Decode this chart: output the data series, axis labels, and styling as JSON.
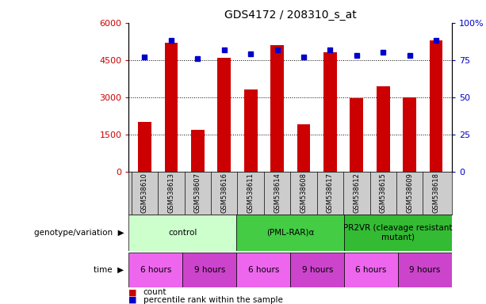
{
  "title": "GDS4172 / 208310_s_at",
  "samples": [
    "GSM538610",
    "GSM538613",
    "GSM538607",
    "GSM538616",
    "GSM538611",
    "GSM538614",
    "GSM538608",
    "GSM538617",
    "GSM538612",
    "GSM538615",
    "GSM538609",
    "GSM538618"
  ],
  "counts": [
    2000,
    5200,
    1700,
    4600,
    3300,
    5100,
    1900,
    4800,
    2950,
    3450,
    3000,
    5300
  ],
  "percentiles": [
    77,
    88,
    76,
    82,
    79,
    82,
    77,
    82,
    78,
    80,
    78,
    88
  ],
  "ylim_left": [
    0,
    6000
  ],
  "ylim_right": [
    0,
    100
  ],
  "yticks_left": [
    0,
    1500,
    3000,
    4500,
    6000
  ],
  "yticks_right": [
    0,
    25,
    50,
    75,
    100
  ],
  "ytick_labels_left": [
    "0",
    "1500",
    "3000",
    "4500",
    "6000"
  ],
  "ytick_labels_right": [
    "0",
    "25",
    "50",
    "75",
    "100%"
  ],
  "bar_color": "#cc0000",
  "dot_color": "#0000cc",
  "groups": [
    {
      "label": "control",
      "start": 0,
      "end": 4,
      "color": "#ccffcc"
    },
    {
      "label": "(PML-RAR)α",
      "start": 4,
      "end": 8,
      "color": "#44cc44"
    },
    {
      "label": "PR2VR (cleavage resistant\nmutant)",
      "start": 8,
      "end": 12,
      "color": "#33bb33"
    }
  ],
  "time_groups": [
    {
      "label": "6 hours",
      "start": 0,
      "end": 2,
      "color": "#ee66ee"
    },
    {
      "label": "9 hours",
      "start": 2,
      "end": 4,
      "color": "#cc44cc"
    },
    {
      "label": "6 hours",
      "start": 4,
      "end": 6,
      "color": "#ee66ee"
    },
    {
      "label": "9 hours",
      "start": 6,
      "end": 8,
      "color": "#cc44cc"
    },
    {
      "label": "6 hours",
      "start": 8,
      "end": 10,
      "color": "#ee66ee"
    },
    {
      "label": "9 hours",
      "start": 10,
      "end": 12,
      "color": "#cc44cc"
    }
  ],
  "legend_count_color": "#cc0000",
  "legend_dot_color": "#0000cc",
  "background_color": "#ffffff",
  "tick_label_color_left": "#cc0000",
  "tick_label_color_right": "#0000cc",
  "sample_bg_color": "#cccccc",
  "sample_line_color": "#ffffff"
}
